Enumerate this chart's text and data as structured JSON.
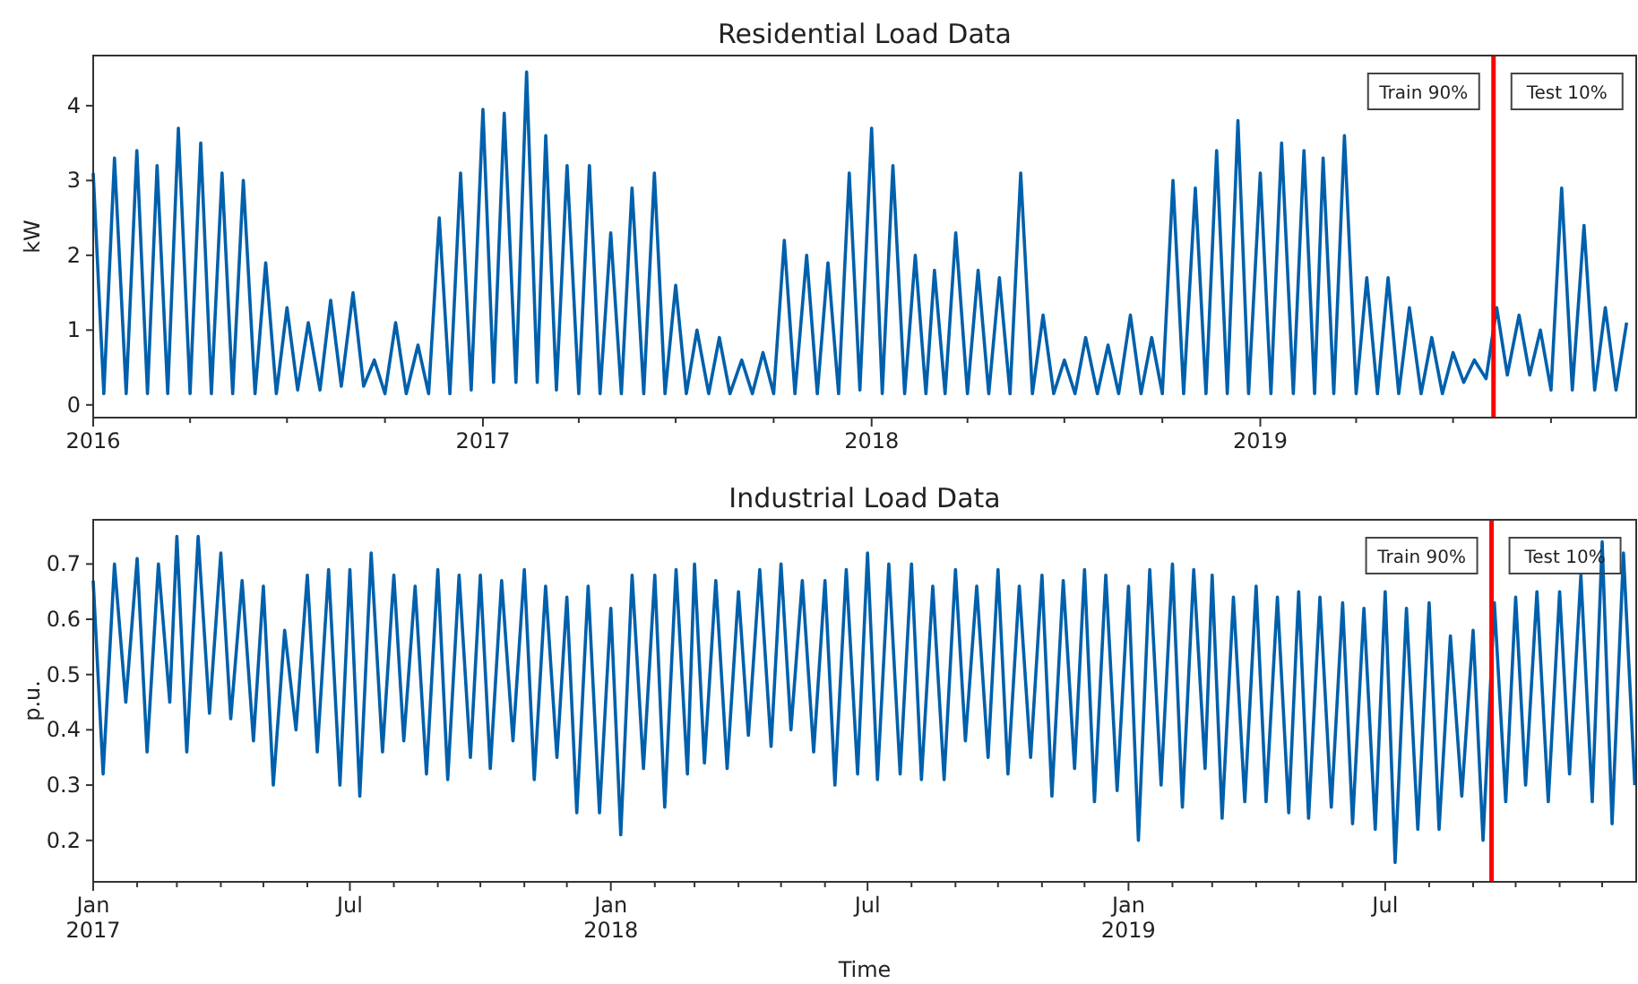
{
  "chart_data": [
    {
      "type": "line",
      "title": "Residential Load Data",
      "ylabel": "kW",
      "grid": false,
      "xlim": [
        "2016-01-01",
        "2019-12-20"
      ],
      "ylim": [
        -0.17,
        4.67
      ],
      "yticks": [
        0,
        1,
        2,
        3,
        4
      ],
      "xticks": [
        {
          "value": "2016-01-01",
          "label": "2016"
        },
        {
          "value": "2016-04-01",
          "label": null
        },
        {
          "value": "2016-07-01",
          "label": null
        },
        {
          "value": "2016-10-01",
          "label": null
        },
        {
          "value": "2017-01-01",
          "label": "2017"
        },
        {
          "value": "2017-04-01",
          "label": null
        },
        {
          "value": "2017-07-01",
          "label": null
        },
        {
          "value": "2017-10-01",
          "label": null
        },
        {
          "value": "2018-01-01",
          "label": "2018"
        },
        {
          "value": "2018-04-01",
          "label": null
        },
        {
          "value": "2018-07-01",
          "label": null
        },
        {
          "value": "2018-10-01",
          "label": null
        },
        {
          "value": "2019-01-01",
          "label": "2019"
        },
        {
          "value": "2019-04-01",
          "label": null
        },
        {
          "value": "2019-07-01",
          "label": null
        },
        {
          "value": "2019-10-01",
          "label": null
        }
      ],
      "ref_lines": [
        {
          "axis": "x",
          "value": "2019-08-08",
          "color": "#ff0000",
          "line_style": "solid"
        }
      ],
      "annotations": [
        "Train 90%",
        "Test 10%"
      ],
      "series": [
        {
          "color": "#0060ab",
          "x": [
            "2016-01-01",
            "2016-01-11",
            "2016-01-21",
            "2016-02-01",
            "2016-02-11",
            "2016-02-21",
            "2016-03-01",
            "2016-03-11",
            "2016-03-21",
            "2016-04-01",
            "2016-04-11",
            "2016-04-21",
            "2016-05-01",
            "2016-05-11",
            "2016-05-21",
            "2016-06-01",
            "2016-06-11",
            "2016-06-21",
            "2016-07-01",
            "2016-07-11",
            "2016-07-21",
            "2016-08-01",
            "2016-08-11",
            "2016-08-21",
            "2016-09-01",
            "2016-09-11",
            "2016-09-21",
            "2016-10-01",
            "2016-10-11",
            "2016-10-21",
            "2016-11-01",
            "2016-11-11",
            "2016-11-21",
            "2016-12-01",
            "2016-12-11",
            "2016-12-21",
            "2017-01-01",
            "2017-01-11",
            "2017-01-21",
            "2017-02-01",
            "2017-02-11",
            "2017-02-21",
            "2017-03-01",
            "2017-03-11",
            "2017-03-21",
            "2017-04-01",
            "2017-04-11",
            "2017-04-21",
            "2017-05-01",
            "2017-05-11",
            "2017-05-21",
            "2017-06-01",
            "2017-06-11",
            "2017-06-21",
            "2017-07-01",
            "2017-07-11",
            "2017-07-21",
            "2017-08-01",
            "2017-08-11",
            "2017-08-21",
            "2017-09-01",
            "2017-09-11",
            "2017-09-21",
            "2017-10-01",
            "2017-10-11",
            "2017-10-21",
            "2017-11-01",
            "2017-11-11",
            "2017-11-21",
            "2017-12-01",
            "2017-12-11",
            "2017-12-21",
            "2018-01-01",
            "2018-01-11",
            "2018-01-21",
            "2018-02-01",
            "2018-02-11",
            "2018-02-21",
            "2018-03-01",
            "2018-03-11",
            "2018-03-21",
            "2018-04-01",
            "2018-04-11",
            "2018-04-21",
            "2018-05-01",
            "2018-05-11",
            "2018-05-21",
            "2018-06-01",
            "2018-06-11",
            "2018-06-21",
            "2018-07-01",
            "2018-07-11",
            "2018-07-21",
            "2018-08-01",
            "2018-08-11",
            "2018-08-21",
            "2018-09-01",
            "2018-09-11",
            "2018-09-21",
            "2018-10-01",
            "2018-10-11",
            "2018-10-21",
            "2018-11-01",
            "2018-11-11",
            "2018-11-21",
            "2018-12-01",
            "2018-12-11",
            "2018-12-21",
            "2019-01-01",
            "2019-01-11",
            "2019-01-21",
            "2019-02-01",
            "2019-02-11",
            "2019-02-21",
            "2019-03-01",
            "2019-03-11",
            "2019-03-21",
            "2019-04-01",
            "2019-04-11",
            "2019-04-21",
            "2019-05-01",
            "2019-05-11",
            "2019-05-21",
            "2019-06-01",
            "2019-06-11",
            "2019-06-21",
            "2019-07-01",
            "2019-07-11",
            "2019-07-21",
            "2019-08-01",
            "2019-08-11",
            "2019-08-21",
            "2019-09-01",
            "2019-09-11",
            "2019-09-21",
            "2019-10-01",
            "2019-10-11",
            "2019-10-21",
            "2019-11-01",
            "2019-11-11",
            "2019-11-21",
            "2019-12-01",
            "2019-12-11"
          ],
          "values": [
            3.1,
            0.15,
            3.3,
            0.15,
            3.4,
            0.15,
            3.2,
            0.15,
            3.7,
            0.15,
            3.5,
            0.15,
            3.1,
            0.15,
            3.0,
            0.15,
            1.9,
            0.15,
            1.3,
            0.2,
            1.1,
            0.2,
            1.4,
            0.25,
            1.5,
            0.25,
            0.6,
            0.15,
            1.1,
            0.15,
            0.8,
            0.15,
            2.5,
            0.15,
            3.1,
            0.2,
            3.95,
            0.3,
            3.9,
            0.3,
            4.45,
            0.3,
            3.6,
            0.2,
            3.2,
            0.15,
            3.2,
            0.15,
            2.3,
            0.15,
            2.9,
            0.15,
            3.1,
            0.15,
            1.6,
            0.15,
            1.0,
            0.15,
            0.9,
            0.15,
            0.6,
            0.15,
            0.7,
            0.15,
            2.2,
            0.15,
            2.0,
            0.15,
            1.9,
            0.15,
            3.1,
            0.2,
            3.7,
            0.15,
            3.2,
            0.15,
            2.0,
            0.15,
            1.8,
            0.15,
            2.3,
            0.15,
            1.8,
            0.15,
            1.7,
            0.15,
            3.1,
            0.15,
            1.2,
            0.15,
            0.6,
            0.15,
            0.9,
            0.15,
            0.8,
            0.15,
            1.2,
            0.15,
            0.9,
            0.15,
            3.0,
            0.15,
            2.9,
            0.15,
            3.4,
            0.15,
            3.8,
            0.15,
            3.1,
            0.15,
            3.5,
            0.15,
            3.4,
            0.15,
            3.3,
            0.15,
            3.6,
            0.15,
            1.7,
            0.15,
            1.7,
            0.15,
            1.3,
            0.15,
            0.9,
            0.15,
            0.7,
            0.3,
            0.6,
            0.35,
            1.3,
            0.4,
            1.2,
            0.4,
            1.0,
            0.2,
            2.9,
            0.2,
            2.4,
            0.2,
            1.3,
            0.2,
            1.1
          ]
        }
      ]
    },
    {
      "type": "line",
      "title": "Industrial Load Data",
      "ylabel": "p.u.",
      "xlabel": "Time",
      "grid": false,
      "xlim": [
        "2017-01-01",
        "2019-12-25"
      ],
      "ylim": [
        0.125,
        0.78
      ],
      "yticks": [
        0.2,
        0.3,
        0.4,
        0.5,
        0.6,
        0.7
      ],
      "xticks": [
        {
          "value": "2017-01-01",
          "label": "Jan\n2017"
        },
        {
          "value": "2017-02-01",
          "label": null
        },
        {
          "value": "2017-03-01",
          "label": null
        },
        {
          "value": "2017-04-01",
          "label": null
        },
        {
          "value": "2017-05-01",
          "label": null
        },
        {
          "value": "2017-06-01",
          "label": null
        },
        {
          "value": "2017-07-01",
          "label": "Jul"
        },
        {
          "value": "2017-08-01",
          "label": null
        },
        {
          "value": "2017-09-01",
          "label": null
        },
        {
          "value": "2017-10-01",
          "label": null
        },
        {
          "value": "2017-11-01",
          "label": null
        },
        {
          "value": "2017-12-01",
          "label": null
        },
        {
          "value": "2018-01-01",
          "label": "Jan\n2018"
        },
        {
          "value": "2018-02-01",
          "label": null
        },
        {
          "value": "2018-03-01",
          "label": null
        },
        {
          "value": "2018-04-01",
          "label": null
        },
        {
          "value": "2018-05-01",
          "label": null
        },
        {
          "value": "2018-06-01",
          "label": null
        },
        {
          "value": "2018-07-01",
          "label": "Jul"
        },
        {
          "value": "2018-08-01",
          "label": null
        },
        {
          "value": "2018-09-01",
          "label": null
        },
        {
          "value": "2018-10-01",
          "label": null
        },
        {
          "value": "2018-11-01",
          "label": null
        },
        {
          "value": "2018-12-01",
          "label": null
        },
        {
          "value": "2019-01-01",
          "label": "Jan\n2019"
        },
        {
          "value": "2019-02-01",
          "label": null
        },
        {
          "value": "2019-03-01",
          "label": null
        },
        {
          "value": "2019-04-01",
          "label": null
        },
        {
          "value": "2019-05-01",
          "label": null
        },
        {
          "value": "2019-06-01",
          "label": null
        },
        {
          "value": "2019-07-01",
          "label": "Jul"
        },
        {
          "value": "2019-08-01",
          "label": null
        },
        {
          "value": "2019-09-01",
          "label": null
        },
        {
          "value": "2019-10-01",
          "label": null
        },
        {
          "value": "2019-11-01",
          "label": null
        },
        {
          "value": "2019-12-01",
          "label": null
        }
      ],
      "ref_lines": [
        {
          "axis": "x",
          "value": "2019-09-14",
          "color": "#ff0000",
          "line_style": "solid"
        }
      ],
      "annotations": [
        "Train 90%",
        "Test 10%"
      ],
      "series": [
        {
          "color": "#0060ab",
          "x": [
            "2017-01-01",
            "2017-01-08",
            "2017-01-16",
            "2017-01-24",
            "2017-02-01",
            "2017-02-08",
            "2017-02-16",
            "2017-02-24",
            "2017-03-01",
            "2017-03-08",
            "2017-03-16",
            "2017-03-24",
            "2017-04-01",
            "2017-04-08",
            "2017-04-16",
            "2017-04-24",
            "2017-05-01",
            "2017-05-08",
            "2017-05-16",
            "2017-05-24",
            "2017-06-01",
            "2017-06-08",
            "2017-06-16",
            "2017-06-24",
            "2017-07-01",
            "2017-07-08",
            "2017-07-16",
            "2017-07-24",
            "2017-08-01",
            "2017-08-08",
            "2017-08-16",
            "2017-08-24",
            "2017-09-01",
            "2017-09-08",
            "2017-09-16",
            "2017-09-24",
            "2017-10-01",
            "2017-10-08",
            "2017-10-16",
            "2017-10-24",
            "2017-11-01",
            "2017-11-08",
            "2017-11-16",
            "2017-11-24",
            "2017-12-01",
            "2017-12-08",
            "2017-12-16",
            "2017-12-24",
            "2018-01-01",
            "2018-01-08",
            "2018-01-16",
            "2018-01-24",
            "2018-02-01",
            "2018-02-08",
            "2018-02-16",
            "2018-02-24",
            "2018-03-01",
            "2018-03-08",
            "2018-03-16",
            "2018-03-24",
            "2018-04-01",
            "2018-04-08",
            "2018-04-16",
            "2018-04-24",
            "2018-05-01",
            "2018-05-08",
            "2018-05-16",
            "2018-05-24",
            "2018-06-01",
            "2018-06-08",
            "2018-06-16",
            "2018-06-24",
            "2018-07-01",
            "2018-07-08",
            "2018-07-16",
            "2018-07-24",
            "2018-08-01",
            "2018-08-08",
            "2018-08-16",
            "2018-08-24",
            "2018-09-01",
            "2018-09-08",
            "2018-09-16",
            "2018-09-24",
            "2018-10-01",
            "2018-10-08",
            "2018-10-16",
            "2018-10-24",
            "2018-11-01",
            "2018-11-08",
            "2018-11-16",
            "2018-11-24",
            "2018-12-01",
            "2018-12-08",
            "2018-12-16",
            "2018-12-24",
            "2019-01-01",
            "2019-01-08",
            "2019-01-16",
            "2019-01-24",
            "2019-02-01",
            "2019-02-08",
            "2019-02-16",
            "2019-02-24",
            "2019-03-01",
            "2019-03-08",
            "2019-03-16",
            "2019-03-24",
            "2019-04-01",
            "2019-04-08",
            "2019-04-16",
            "2019-04-24",
            "2019-05-01",
            "2019-05-08",
            "2019-05-16",
            "2019-05-24",
            "2019-06-01",
            "2019-06-08",
            "2019-06-16",
            "2019-06-24",
            "2019-07-01",
            "2019-07-08",
            "2019-07-16",
            "2019-07-24",
            "2019-08-01",
            "2019-08-08",
            "2019-08-16",
            "2019-08-24",
            "2019-09-01",
            "2019-09-08",
            "2019-09-16",
            "2019-09-24",
            "2019-10-01",
            "2019-10-08",
            "2019-10-16",
            "2019-10-24",
            "2019-11-01",
            "2019-11-08",
            "2019-11-16",
            "2019-11-24",
            "2019-12-01",
            "2019-12-08",
            "2019-12-16",
            "2019-12-24"
          ],
          "values": [
            0.67,
            0.32,
            0.7,
            0.45,
            0.71,
            0.36,
            0.7,
            0.45,
            0.75,
            0.36,
            0.75,
            0.43,
            0.72,
            0.42,
            0.67,
            0.38,
            0.66,
            0.3,
            0.58,
            0.4,
            0.68,
            0.36,
            0.69,
            0.3,
            0.69,
            0.28,
            0.72,
            0.36,
            0.68,
            0.38,
            0.66,
            0.32,
            0.69,
            0.31,
            0.68,
            0.35,
            0.68,
            0.33,
            0.67,
            0.38,
            0.69,
            0.31,
            0.66,
            0.35,
            0.64,
            0.25,
            0.66,
            0.25,
            0.62,
            0.21,
            0.68,
            0.33,
            0.68,
            0.26,
            0.69,
            0.32,
            0.7,
            0.34,
            0.67,
            0.33,
            0.65,
            0.39,
            0.69,
            0.37,
            0.7,
            0.4,
            0.67,
            0.36,
            0.67,
            0.3,
            0.69,
            0.32,
            0.72,
            0.31,
            0.7,
            0.32,
            0.7,
            0.31,
            0.66,
            0.31,
            0.69,
            0.38,
            0.66,
            0.35,
            0.69,
            0.32,
            0.66,
            0.35,
            0.68,
            0.28,
            0.67,
            0.33,
            0.69,
            0.27,
            0.68,
            0.29,
            0.66,
            0.2,
            0.69,
            0.3,
            0.7,
            0.26,
            0.69,
            0.33,
            0.68,
            0.24,
            0.64,
            0.27,
            0.66,
            0.27,
            0.64,
            0.25,
            0.65,
            0.24,
            0.64,
            0.26,
            0.63,
            0.23,
            0.62,
            0.22,
            0.65,
            0.16,
            0.62,
            0.22,
            0.63,
            0.22,
            0.57,
            0.28,
            0.58,
            0.2,
            0.63,
            0.27,
            0.64,
            0.3,
            0.65,
            0.27,
            0.65,
            0.32,
            0.68,
            0.27,
            0.74,
            0.23,
            0.72,
            0.3
          ]
        }
      ]
    }
  ]
}
